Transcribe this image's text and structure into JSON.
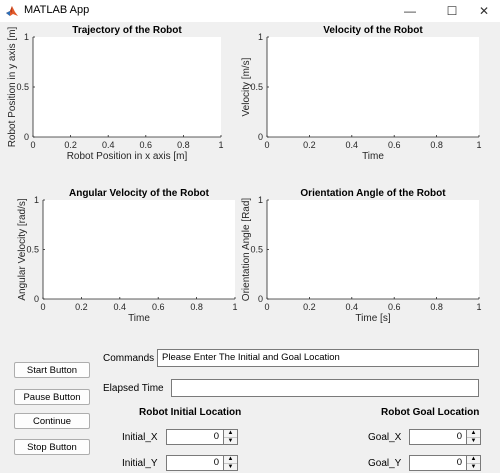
{
  "window": {
    "title": "MATLAB App",
    "minimize_glyph": "—",
    "maximize_glyph": "☐",
    "close_glyph": "✕"
  },
  "axes": [
    {
      "title": "Trajectory of the Robot",
      "xlabel": "Robot Position in x axis [m]",
      "ylabel": "Robot Position in y axis [m]",
      "xticks": [
        "0",
        "0.2",
        "0.4",
        "0.6",
        "0.8",
        "1"
      ],
      "yticks": [
        "0",
        "0.5",
        "1"
      ]
    },
    {
      "title": "Velocity of the Robot",
      "xlabel": "Time",
      "ylabel": "Velocity [m/s]",
      "xticks": [
        "0",
        "0.2",
        "0.4",
        "0.6",
        "0.8",
        "1"
      ],
      "yticks": [
        "0",
        "0.5",
        "1"
      ]
    },
    {
      "title": "Angular Velocity of the Robot",
      "xlabel": "Time",
      "ylabel": "Angular Velocity [rad/s]",
      "xticks": [
        "0",
        "0.2",
        "0.4",
        "0.6",
        "0.8",
        "1"
      ],
      "yticks": [
        "0",
        "0.5",
        "1"
      ]
    },
    {
      "title": "Orientation Angle of the Robot",
      "xlabel": "Time [s]",
      "ylabel": "Orientation Angle [Rad]",
      "xticks": [
        "0",
        "0.2",
        "0.4",
        "0.6",
        "0.8",
        "1"
      ],
      "yticks": [
        "0",
        "0.5",
        "1"
      ]
    }
  ],
  "chart_data": [
    {
      "type": "line",
      "title": "Trajectory of the Robot",
      "xlabel": "Robot Position in x axis [m]",
      "ylabel": "Robot Position in y axis [m]",
      "xlim": [
        0,
        1
      ],
      "ylim": [
        0,
        1
      ],
      "series": []
    },
    {
      "type": "line",
      "title": "Velocity of the Robot",
      "xlabel": "Time",
      "ylabel": "Velocity [m/s]",
      "xlim": [
        0,
        1
      ],
      "ylim": [
        0,
        1
      ],
      "series": []
    },
    {
      "type": "line",
      "title": "Angular Velocity of the Robot",
      "xlabel": "Time",
      "ylabel": "Angular Velocity [rad/s]",
      "xlim": [
        0,
        1
      ],
      "ylim": [
        0,
        1
      ],
      "series": []
    },
    {
      "type": "line",
      "title": "Orientation Angle of the Robot",
      "xlabel": "Time [s]",
      "ylabel": "Orientation Angle [Rad]",
      "xlim": [
        0,
        1
      ],
      "ylim": [
        0,
        1
      ],
      "series": []
    }
  ],
  "controls": {
    "start_label": "Start Button",
    "pause_label": "Pause Button",
    "continue_label": "Continue",
    "stop_label": "Stop Button",
    "commands_label": "Commands",
    "commands_value": "Please Enter The Initial and Goal Location",
    "elapsed_label": "Elapsed Time",
    "elapsed_value": "",
    "initial_heading": "Robot Initial Location",
    "goal_heading": "Robot Goal Location",
    "initial_x_label": "Initial_X",
    "initial_x_value": "0",
    "initial_y_label": "Initial_Y",
    "initial_y_value": "0",
    "goal_x_label": "Goal_X",
    "goal_x_value": "0",
    "goal_y_label": "Goal_Y",
    "goal_y_value": "0"
  }
}
